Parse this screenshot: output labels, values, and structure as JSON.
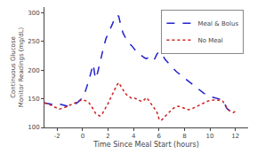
{
  "chart_data": {
    "type": "line",
    "xlabel": "Time Since Meal Start (hours)",
    "ylabel": "Continuous Glucose\nMonitor Readings (mg/dL)",
    "x": [
      -3.0,
      -2.833,
      -2.667,
      -2.5,
      -2.333,
      -2.167,
      -2.0,
      -1.833,
      -1.667,
      -1.5,
      -1.333,
      -1.167,
      -1.0,
      -0.833,
      -0.667,
      -0.5,
      -0.333,
      -0.167,
      0.0,
      0.167,
      0.333,
      0.5,
      0.667,
      0.833,
      1.0,
      1.167,
      1.333,
      1.5,
      1.667,
      1.833,
      2.0,
      2.167,
      2.333,
      2.5,
      2.667,
      2.833,
      3.0,
      3.167,
      3.333,
      3.5,
      3.667,
      3.833,
      4.0,
      4.167,
      4.333,
      4.5,
      4.667,
      4.833,
      5.0,
      5.167,
      5.333,
      5.5,
      5.667,
      5.833,
      6.0,
      6.167,
      6.333,
      6.5,
      6.667,
      6.833,
      7.0,
      7.167,
      7.333,
      7.5,
      7.667,
      7.833,
      8.0,
      8.167,
      8.333,
      8.5,
      8.667,
      8.833,
      9.0,
      9.167,
      9.333,
      9.5,
      9.667,
      9.833,
      10.0,
      10.167,
      10.333,
      10.5,
      10.667,
      10.833,
      11.0,
      11.167,
      11.333,
      11.5,
      11.667,
      11.833,
      12.0
    ],
    "series": [
      {
        "name": "Meal & Bolus",
        "color": "#2222cc",
        "line_style": "dashed",
        "values": [
          143,
          142,
          141,
          140,
          140,
          141,
          142,
          141,
          140,
          139,
          138,
          137,
          138,
          139,
          140,
          142,
          145,
          148,
          152,
          160,
          170,
          183,
          197,
          210,
          185,
          195,
          210,
          228,
          242,
          255,
          265,
          272,
          280,
          290,
          296,
          294,
          278,
          265,
          258,
          252,
          247,
          243,
          238,
          234,
          230,
          227,
          224,
          222,
          220,
          222,
          218,
          216,
          220,
          228,
          232,
          228,
          224,
          218,
          214,
          210,
          205,
          202,
          198,
          195,
          192,
          190,
          186,
          183,
          180,
          177,
          174,
          171,
          168,
          165,
          162,
          160,
          158,
          157,
          155,
          153,
          152,
          151,
          150,
          149,
          148,
          141,
          133,
          130,
          128,
          126,
          128
        ]
      },
      {
        "name": "No Meal",
        "color": "#cc2222",
        "line_style": "dotted",
        "values": [
          143,
          142,
          141,
          139,
          137,
          135,
          133,
          132,
          133,
          134,
          136,
          137,
          139,
          140,
          142,
          144,
          146,
          147,
          148,
          147,
          146,
          143,
          138,
          132,
          125,
          122,
          120,
          122,
          128,
          135,
          142,
          150,
          158,
          166,
          173,
          178,
          172,
          165,
          160,
          156,
          153,
          151,
          152,
          150,
          148,
          147,
          145,
          148,
          152,
          148,
          143,
          138,
          133,
          127,
          115,
          112,
          116,
          120,
          124,
          128,
          131,
          134,
          136,
          137,
          136,
          135,
          133,
          132,
          131,
          132,
          133,
          135,
          137,
          139,
          141,
          143,
          144,
          146,
          147,
          148,
          148,
          147,
          148,
          147,
          146,
          140,
          133,
          130,
          128,
          126,
          128
        ]
      }
    ],
    "xlim": [
      -3,
      13
    ],
    "ylim": [
      100,
      310
    ],
    "xticks": [
      -2,
      0,
      2,
      4,
      6,
      8,
      10,
      12
    ],
    "yticks": [
      100,
      150,
      200,
      250,
      300
    ],
    "grid": false,
    "legend": "upper right"
  }
}
